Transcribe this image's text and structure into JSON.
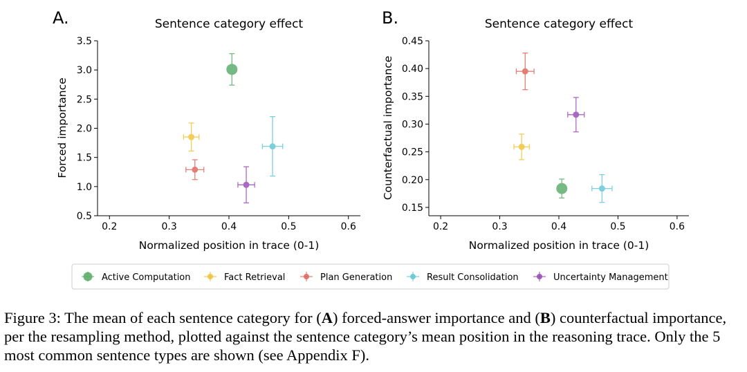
{
  "chart_data": [
    {
      "panel": "A.",
      "type": "scatter",
      "title": "Sentence category effect",
      "xlabel": "Normalized position in trace (0-1)",
      "ylabel": "Forced importance",
      "xlim": [
        0.18,
        0.62
      ],
      "ylim": [
        0.5,
        3.5
      ],
      "xticks": [
        0.2,
        0.3,
        0.4,
        0.5,
        0.6
      ],
      "yticks": [
        0.5,
        1.0,
        1.5,
        2.0,
        2.5,
        3.0,
        3.5
      ],
      "xtick_labels": [
        "0.2",
        "0.3",
        "0.4",
        "0.5",
        "0.6"
      ],
      "ytick_labels": [
        "0.5",
        "1.0",
        "1.5",
        "2.0",
        "2.5",
        "3.0",
        "3.5"
      ],
      "grid": false,
      "series": [
        {
          "name": "Active Computation",
          "x": 0.405,
          "y": 3.01,
          "xerr": 0.006,
          "yerr": 0.27
        },
        {
          "name": "Fact Retrieval",
          "x": 0.337,
          "y": 1.85,
          "xerr": 0.013,
          "yerr": 0.24
        },
        {
          "name": "Plan Generation",
          "x": 0.343,
          "y": 1.29,
          "xerr": 0.015,
          "yerr": 0.17
        },
        {
          "name": "Result Consolidation",
          "x": 0.473,
          "y": 1.69,
          "xerr": 0.017,
          "yerr": 0.51
        },
        {
          "name": "Uncertainty Management",
          "x": 0.429,
          "y": 1.03,
          "xerr": 0.014,
          "yerr": 0.31
        }
      ]
    },
    {
      "panel": "B.",
      "type": "scatter",
      "title": "Sentence category effect",
      "xlabel": "Normalized position in trace (0-1)",
      "ylabel": "Counterfactual importance",
      "xlim": [
        0.18,
        0.62
      ],
      "ylim": [
        0.135,
        0.45
      ],
      "xticks": [
        0.2,
        0.3,
        0.4,
        0.5,
        0.6
      ],
      "yticks": [
        0.15,
        0.2,
        0.25,
        0.3,
        0.35,
        0.4,
        0.45
      ],
      "xtick_labels": [
        "0.2",
        "0.3",
        "0.4",
        "0.5",
        "0.6"
      ],
      "ytick_labels": [
        "0.15",
        "0.20",
        "0.25",
        "0.30",
        "0.35",
        "0.40",
        "0.45"
      ],
      "grid": false,
      "series": [
        {
          "name": "Active Computation",
          "x": 0.405,
          "y": 0.184,
          "xerr": 0.006,
          "yerr": 0.017
        },
        {
          "name": "Fact Retrieval",
          "x": 0.337,
          "y": 0.259,
          "xerr": 0.013,
          "yerr": 0.023
        },
        {
          "name": "Plan Generation",
          "x": 0.343,
          "y": 0.395,
          "xerr": 0.015,
          "yerr": 0.033
        },
        {
          "name": "Result Consolidation",
          "x": 0.473,
          "y": 0.184,
          "xerr": 0.017,
          "yerr": 0.025
        },
        {
          "name": "Uncertainty Management",
          "x": 0.429,
          "y": 0.317,
          "xerr": 0.014,
          "yerr": 0.031
        }
      ]
    }
  ],
  "legend": {
    "placement": "bottom-center",
    "items": [
      {
        "name": "Active Computation",
        "color": "#5fae6e",
        "big": true
      },
      {
        "name": "Fact Retrieval",
        "color": "#f2c43d",
        "big": false
      },
      {
        "name": "Plan Generation",
        "color": "#df6b5e",
        "big": false
      },
      {
        "name": "Result Consolidation",
        "color": "#67c7d6",
        "big": false
      },
      {
        "name": "Uncertainty Management",
        "color": "#9a4fb7",
        "big": false
      }
    ]
  },
  "caption": {
    "p1": "Figure 3: The mean of each sentence category for (",
    "b1": "A",
    "p2": ") forced-answer importance and (",
    "b2": "B",
    "p3": ") counterfactual importance, per the resampling method, plotted against the sentence category’s mean position in the reasoning trace. Only the 5 most common sentence types are shown (see Appendix F)."
  }
}
